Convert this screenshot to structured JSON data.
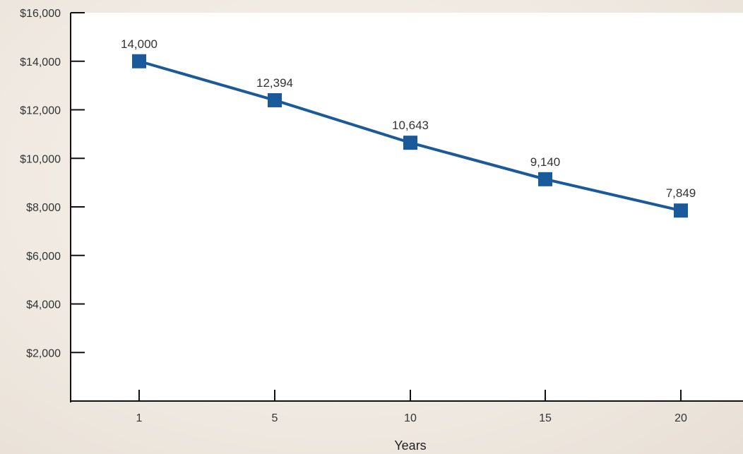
{
  "chart_data": {
    "type": "line",
    "title": "",
    "xlabel": "Years",
    "ylabel": "",
    "categories": [
      "1",
      "5",
      "10",
      "15",
      "20"
    ],
    "series": [
      {
        "values": [
          14000,
          12394,
          10643,
          9140,
          7849
        ],
        "data_labels": [
          "14,000",
          "12,394",
          "10,643",
          "9,140",
          "7,849"
        ],
        "color": "#1b5a9a",
        "marker": "square"
      }
    ],
    "ylim": [
      0,
      16000
    ],
    "y_ticks": [
      2000,
      4000,
      6000,
      8000,
      10000,
      12000,
      14000,
      16000
    ],
    "y_tick_labels": [
      "$2,000",
      "$4,000",
      "$6,000",
      "$8,000",
      "$10,000",
      "$12,000",
      "$14,000",
      "$16,000"
    ],
    "grid": false,
    "legend": "none",
    "colors": {
      "plot_background": "#ffffff",
      "page_background": "#ece5dc",
      "axis": "#111111",
      "text": "#333333"
    }
  }
}
